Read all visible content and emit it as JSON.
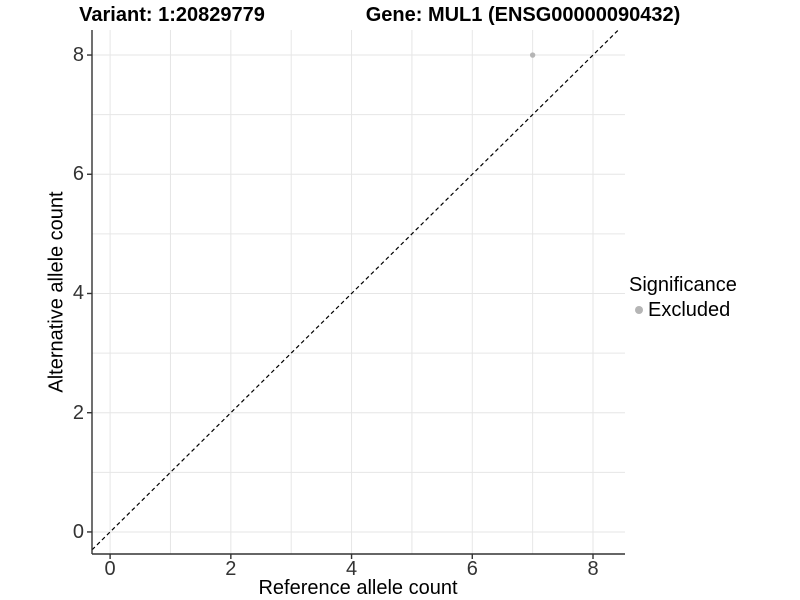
{
  "chart_data": {
    "type": "scatter",
    "title_left": "Variant: 1:20829779",
    "title_right": "Gene: MUL1 (ENSG00000090432)",
    "xlabel": "Reference allele count",
    "ylabel": "Alternative allele count",
    "xlim": [
      -0.3,
      8.53
    ],
    "ylim": [
      -0.37,
      8.42
    ],
    "x_ticks": [
      0,
      2,
      4,
      6,
      8
    ],
    "y_ticks": [
      0,
      2,
      4,
      6,
      8
    ],
    "x_grid": [
      0,
      1,
      2,
      3,
      4,
      5,
      6,
      7,
      8
    ],
    "y_grid": [
      0,
      1,
      2,
      3,
      4,
      5,
      6,
      7,
      8
    ],
    "grid": "on",
    "legend_position": "right",
    "legend_title": "Significance",
    "series": [
      {
        "name": "Excluded",
        "color": "#B5B5B5",
        "points": [
          {
            "x": 7,
            "y": 8
          }
        ]
      }
    ],
    "reference_line": {
      "type": "identity",
      "slope": 1,
      "intercept": 0,
      "style": "dashed",
      "color": "#000000"
    },
    "colors": {
      "grid": "#E6E6E6",
      "axis": "#333333",
      "panel_background": "#FFFFFF"
    }
  }
}
